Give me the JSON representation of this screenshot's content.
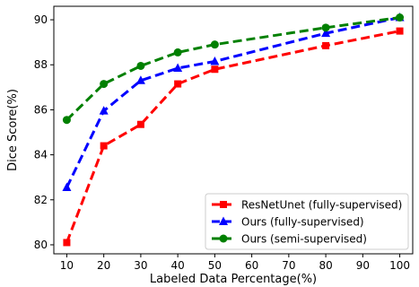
{
  "chart_data": {
    "type": "line",
    "title": "",
    "xlabel": "Labeled Data Percentage(%)",
    "ylabel": "Dice Score(%)",
    "xlim": [
      6.5,
      103.5
    ],
    "ylim": [
      79.6,
      90.6
    ],
    "xticks": [
      10,
      20,
      30,
      40,
      50,
      60,
      70,
      80,
      90,
      100
    ],
    "yticks": [
      80,
      82,
      84,
      86,
      88,
      90
    ],
    "legend_position": "bottom-right",
    "grid": false,
    "series": [
      {
        "name": "ResNetUnet (fully-supervised)",
        "color": "#ff0000",
        "marker": "square",
        "x": [
          10,
          20,
          30,
          40,
          50,
          80,
          100
        ],
        "y": [
          80.1,
          84.4,
          85.35,
          87.15,
          87.8,
          88.85,
          89.5
        ]
      },
      {
        "name": "Ours (fully-supervised)",
        "color": "#0000ff",
        "marker": "triangle",
        "x": [
          10,
          20,
          30,
          40,
          50,
          80,
          100
        ],
        "y": [
          82.55,
          85.95,
          87.3,
          87.85,
          88.15,
          89.4,
          90.1
        ]
      },
      {
        "name": "Ours (semi-supervised)",
        "color": "#008000",
        "marker": "circle",
        "x": [
          10,
          20,
          30,
          40,
          50,
          80,
          100
        ],
        "y": [
          85.55,
          87.15,
          87.95,
          88.55,
          88.9,
          89.65,
          90.1
        ]
      }
    ]
  }
}
